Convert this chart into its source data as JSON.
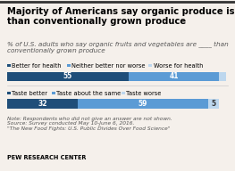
{
  "title": "Majority of Americans say organic produce is healthier\nthan conventionally grown produce",
  "subtitle": "% of U.S. adults who say organic fruits and vegetables are ____ than\nconventionally grown produce",
  "bar1_labels": [
    "Better for health",
    "Neither better nor worse",
    "Worse for health"
  ],
  "bar1_values": [
    55,
    41,
    3
  ],
  "bar1_colors": [
    "#1f4e79",
    "#5b9bd5",
    "#bdd7ee"
  ],
  "bar2_labels": [
    "Taste better",
    "Taste about the same",
    "Taste worse"
  ],
  "bar2_values": [
    32,
    59,
    5
  ],
  "bar2_colors": [
    "#1f4e79",
    "#5b9bd5",
    "#bdd7ee"
  ],
  "note": "Note: Respondents who did not give an answer are not shown.\nSource: Survey conducted May 10-June 6, 2016.\n\"The New Food Fights: U.S. Public Divides Over Food Science\"",
  "footer": "PEW RESEARCH CENTER",
  "bg_color": "#f5f0eb",
  "title_fontsize": 7.2,
  "subtitle_fontsize": 5.2,
  "label_fontsize": 4.8,
  "value_fontsize": 5.5,
  "note_fontsize": 4.2
}
